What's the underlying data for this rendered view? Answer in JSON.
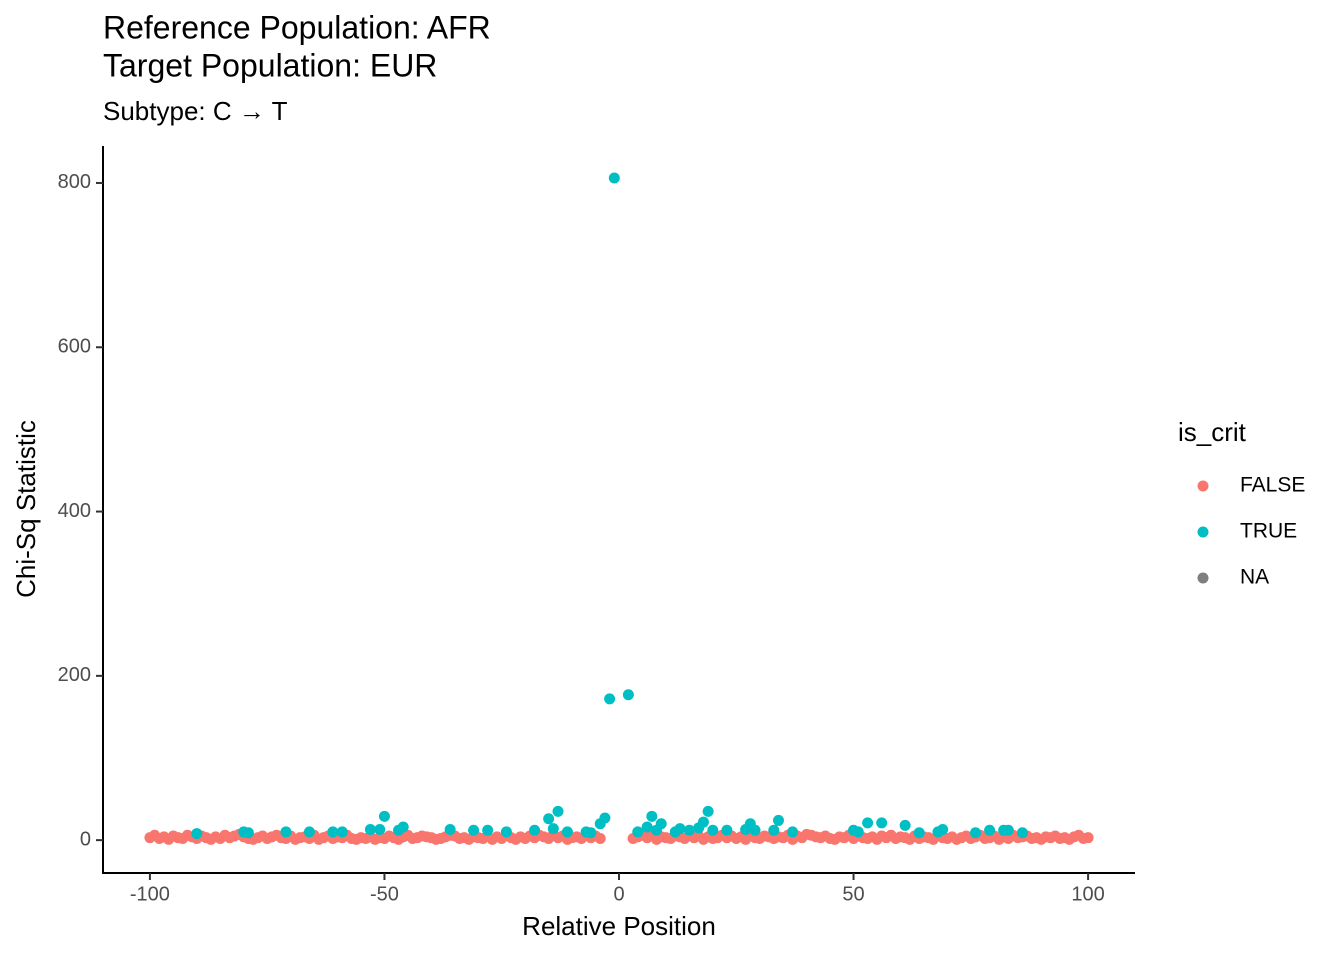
{
  "chart_data": {
    "type": "scatter",
    "title": [
      "Reference Population: AFR",
      "Target Population: EUR"
    ],
    "subtitle": "Subtype: C → T",
    "x_label": "Relative Position",
    "y_label": "Chi-Sq Statistic",
    "legend_title": "is_crit",
    "legend_position": "right",
    "grid": false,
    "xlim": [
      -110,
      110
    ],
    "ylim": [
      -40,
      845
    ],
    "xticks": [
      -100,
      -50,
      0,
      50,
      100
    ],
    "yticks": [
      0,
      200,
      400,
      600,
      800
    ],
    "series": [
      {
        "name": "FALSE",
        "color": "#F8766D",
        "x": [
          -100,
          -99,
          -98,
          -97,
          -96,
          -95,
          -94,
          -93,
          -92,
          -91,
          -90,
          -89,
          -88,
          -87,
          -86,
          -85,
          -84,
          -83,
          -82,
          -81,
          -80,
          -79,
          -78,
          -77,
          -76,
          -75,
          -74,
          -73,
          -72,
          -71,
          -70,
          -69,
          -68,
          -67,
          -66,
          -65,
          -64,
          -63,
          -62,
          -61,
          -60,
          -59,
          -58,
          -57,
          -56,
          -55,
          -54,
          -53,
          -52,
          -51,
          -50,
          -49,
          -48,
          -47,
          -46,
          -45,
          -44,
          -43,
          -42,
          -41,
          -40,
          -39,
          -38,
          -37,
          -36,
          -35,
          -34,
          -33,
          -32,
          -31,
          -30,
          -29,
          -28,
          -27,
          -26,
          -25,
          -24,
          -23,
          -22,
          -21,
          -20,
          -19,
          -18,
          -17,
          -16,
          -15,
          -14,
          -13,
          -12,
          -11,
          -10,
          -9,
          -8,
          -7,
          -6,
          -5,
          -4,
          3,
          4,
          5,
          6,
          7,
          8,
          9,
          10,
          11,
          12,
          13,
          14,
          15,
          16,
          17,
          18,
          19,
          20,
          21,
          22,
          23,
          24,
          25,
          26,
          27,
          28,
          29,
          30,
          31,
          32,
          33,
          34,
          35,
          36,
          37,
          38,
          39,
          40,
          41,
          42,
          43,
          44,
          45,
          46,
          47,
          48,
          49,
          50,
          51,
          52,
          53,
          54,
          55,
          56,
          57,
          58,
          59,
          60,
          61,
          62,
          63,
          64,
          65,
          66,
          67,
          68,
          69,
          70,
          71,
          72,
          73,
          74,
          75,
          76,
          77,
          78,
          79,
          80,
          81,
          82,
          83,
          84,
          85,
          86,
          87,
          88,
          89,
          90,
          91,
          92,
          93,
          94,
          95,
          96,
          97,
          98,
          99,
          100
        ],
        "values": [
          3,
          6,
          2,
          4,
          1,
          5,
          3,
          2,
          6,
          4,
          2,
          5,
          3,
          1,
          4,
          2,
          6,
          3,
          5,
          7,
          4,
          2,
          1,
          3,
          5,
          2,
          4,
          6,
          3,
          2,
          5,
          1,
          3,
          4,
          2,
          6,
          1,
          3,
          5,
          2,
          4,
          3,
          6,
          2,
          1,
          3,
          2,
          4,
          1,
          3,
          2,
          5,
          3,
          1,
          4,
          6,
          2,
          3,
          5,
          4,
          3,
          1,
          2,
          4,
          6,
          5,
          2,
          3,
          1,
          4,
          3,
          2,
          5,
          1,
          4,
          2,
          6,
          3,
          1,
          4,
          2,
          5,
          3,
          6,
          4,
          2,
          7,
          3,
          5,
          1,
          3,
          4,
          2,
          6,
          3,
          5,
          2,
          2,
          4,
          6,
          3,
          5,
          1,
          4,
          3,
          2,
          5,
          4,
          2,
          6,
          3,
          5,
          1,
          4,
          2,
          3,
          6,
          3,
          5,
          2,
          4,
          1,
          6,
          3,
          2,
          5,
          4,
          2,
          4,
          3,
          6,
          1,
          5,
          3,
          7,
          6,
          4,
          3,
          5,
          2,
          1,
          4,
          3,
          6,
          2,
          5,
          3,
          2,
          4,
          1,
          5,
          3,
          6,
          2,
          4,
          3,
          1,
          5,
          2,
          4,
          3,
          1,
          6,
          3,
          2,
          4,
          1,
          3,
          5,
          2,
          4,
          6,
          2,
          3,
          5,
          1,
          4,
          2,
          6,
          3,
          4,
          5,
          2,
          3,
          1,
          4,
          3,
          5,
          2,
          3,
          1,
          4,
          6,
          2,
          3
        ]
      },
      {
        "name": "TRUE",
        "color": "#00BFC4",
        "x": [
          -90,
          -80,
          -79,
          -71,
          -66,
          -61,
          -59,
          -53,
          -51,
          -50,
          -47,
          -46,
          -36,
          -31,
          -28,
          -24,
          -18,
          -15,
          -14,
          -13,
          -11,
          -7,
          -6,
          -4,
          -3,
          -2,
          -1,
          2,
          4,
          6,
          7,
          8,
          9,
          12,
          13,
          15,
          17,
          18,
          19,
          20,
          23,
          27,
          28,
          29,
          33,
          34,
          37,
          50,
          51,
          53,
          56,
          61,
          64,
          68,
          69,
          76,
          79,
          82,
          83,
          86
        ],
        "values": [
          8,
          10,
          9,
          10,
          10,
          10,
          10,
          13,
          13,
          29,
          12,
          16,
          13,
          12,
          12,
          10,
          12,
          26,
          14,
          35,
          10,
          10,
          9,
          20,
          27,
          172,
          806,
          177,
          10,
          16,
          29,
          12,
          20,
          10,
          14,
          12,
          15,
          22,
          35,
          12,
          12,
          13,
          20,
          12,
          12,
          24,
          10,
          12,
          10,
          21,
          21,
          18,
          9,
          10,
          13,
          9,
          12,
          12,
          12,
          9
        ]
      },
      {
        "name": "NA",
        "color": "#7F7F7F",
        "x": [],
        "values": []
      }
    ]
  }
}
